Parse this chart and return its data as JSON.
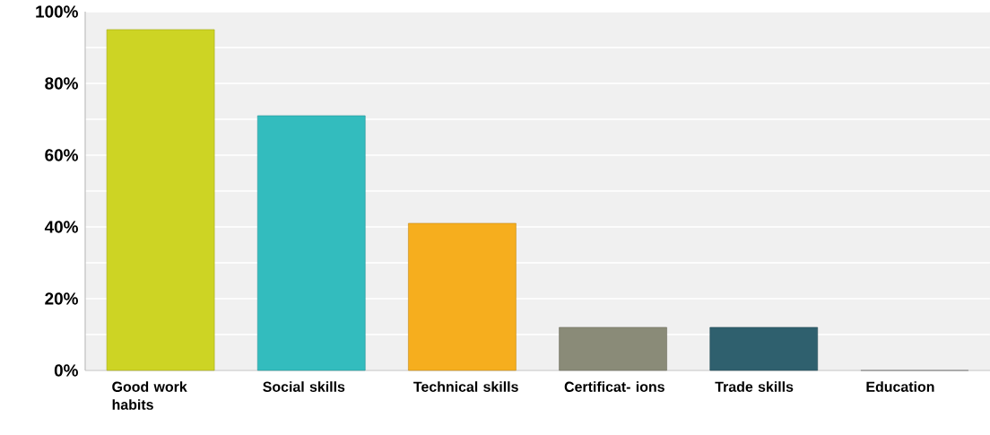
{
  "chart_data": {
    "type": "bar",
    "categories": [
      "Good work habits",
      "Social skills",
      "Technical skills",
      "Certificat- ions",
      "Trade skills",
      "Education"
    ],
    "values": [
      95,
      71,
      41,
      12,
      12,
      0
    ],
    "colors": [
      "#cdd424",
      "#33bcbe",
      "#f6ae1e",
      "#8a8b78",
      "#2f606e",
      "#9e9e9e"
    ],
    "ylim": [
      0,
      100
    ],
    "yticks": [
      {
        "value": 0,
        "label": "0%"
      },
      {
        "value": 10,
        "label": null
      },
      {
        "value": 20,
        "label": "20%"
      },
      {
        "value": 30,
        "label": null
      },
      {
        "value": 40,
        "label": "40%"
      },
      {
        "value": 50,
        "label": null
      },
      {
        "value": 60,
        "label": "60%"
      },
      {
        "value": 70,
        "label": null
      },
      {
        "value": 80,
        "label": "80%"
      },
      {
        "value": 90,
        "label": null
      },
      {
        "value": 100,
        "label": "100%"
      }
    ],
    "grid": "y"
  }
}
